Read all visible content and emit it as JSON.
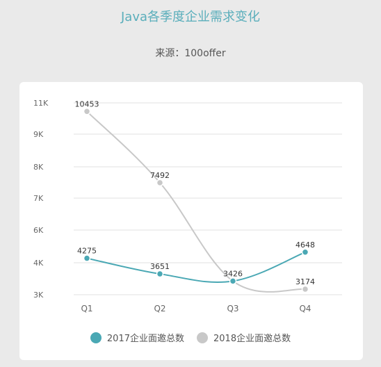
{
  "header": {
    "title": "Java各季度企业需求变化",
    "source": "来源：100offer"
  },
  "chart_data": {
    "type": "line",
    "categories": [
      "Q1",
      "Q2",
      "Q3",
      "Q4"
    ],
    "series": [
      {
        "name": "2017企业面邀总数",
        "values": [
          4275,
          3651,
          3426,
          4648
        ],
        "color": "#4aa8b4"
      },
      {
        "name": "2018企业面邀总数",
        "values": [
          10453,
          7492,
          3426,
          3174
        ],
        "color": "#c8c8c8"
      }
    ],
    "y_ticks": [
      {
        "value": 3000,
        "label": "3K"
      },
      {
        "value": 4000,
        "label": "4K"
      },
      {
        "value": 6000,
        "label": "6K"
      },
      {
        "value": 7000,
        "label": "7K"
      },
      {
        "value": 8000,
        "label": "8K"
      },
      {
        "value": 9000,
        "label": "9K"
      },
      {
        "value": 11000,
        "label": "11K"
      }
    ],
    "grid": true,
    "legend_position": "bottom"
  }
}
